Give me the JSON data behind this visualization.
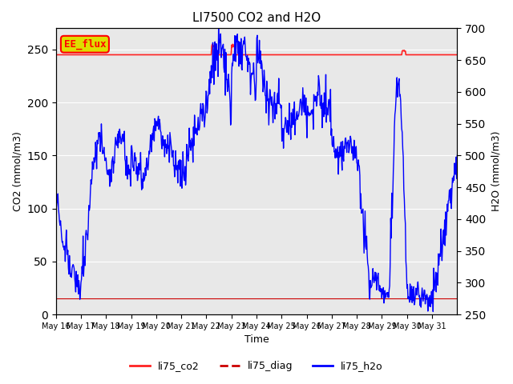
{
  "title": "LI7500 CO2 and H2O",
  "xlabel": "Time",
  "ylabel_left": "CO2 (mmol/m3)",
  "ylabel_right": "H2O (mmol/m3)",
  "ylim_left": [
    0,
    270
  ],
  "ylim_right": [
    250,
    700
  ],
  "annotation": "EE_flux",
  "annotation_text_color": "red",
  "annotation_bg_color": "#DDDD00",
  "background_color": "#E8E8E8",
  "co2_color": "#FF2222",
  "diag_color": "#CC0000",
  "h2o_color": "#0000FF",
  "grid_color": "white",
  "xtick_labels": [
    "May 16",
    "May 17",
    "May 18",
    "May 19",
    "May 20",
    "May 21",
    "May 22",
    "May 23",
    "May 24",
    "May 25",
    "May 26",
    "May 27",
    "May 28",
    "May 29",
    "May 30",
    "May 31"
  ],
  "n_days": 16
}
